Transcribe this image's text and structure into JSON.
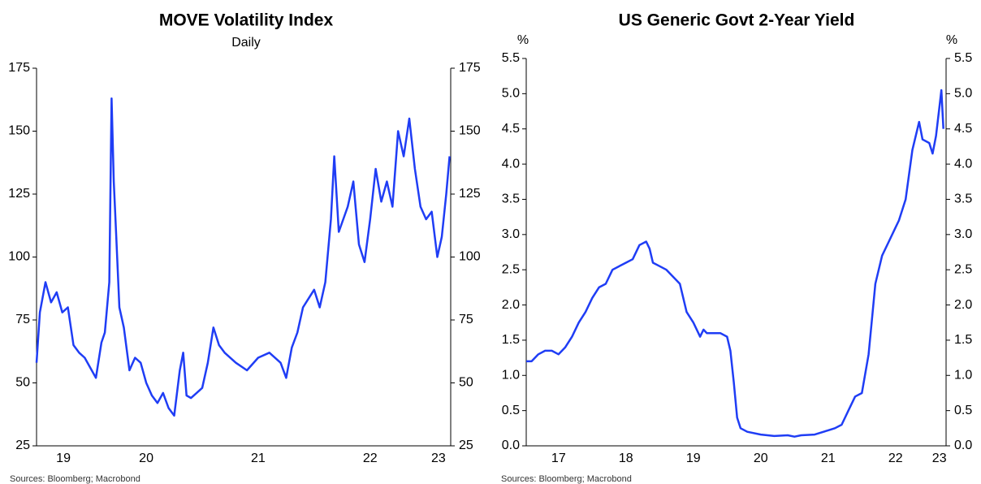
{
  "chart_data": [
    {
      "type": "line",
      "title": "MOVE Volatility Index",
      "subtitle": "Daily",
      "source": "Sources: Bloomberg; Macrobond",
      "color": "#1f3df5",
      "x": [
        2019.52,
        2019.55,
        2019.6,
        2019.65,
        2019.7,
        2019.75,
        2019.8,
        2019.85,
        2019.9,
        2019.95,
        2020.0,
        2020.05,
        2020.1,
        2020.13,
        2020.17,
        2020.19,
        2020.21,
        2020.23,
        2020.26,
        2020.3,
        2020.35,
        2020.4,
        2020.45,
        2020.5,
        2020.55,
        2020.6,
        2020.65,
        2020.7,
        2020.75,
        2020.8,
        2020.83,
        2020.86,
        2020.9,
        2020.95,
        2021.0,
        2021.05,
        2021.1,
        2021.15,
        2021.2,
        2021.3,
        2021.4,
        2021.5,
        2021.6,
        2021.7,
        2021.75,
        2021.8,
        2021.85,
        2021.9,
        2022.0,
        2022.05,
        2022.1,
        2022.15,
        2022.18,
        2022.22,
        2022.3,
        2022.35,
        2022.4,
        2022.45,
        2022.5,
        2022.55,
        2022.6,
        2022.65,
        2022.7,
        2022.75,
        2022.8,
        2022.85,
        2022.9,
        2022.95,
        2023.0,
        2023.05,
        2023.1,
        2023.14,
        2023.18,
        2023.21
      ],
      "values": [
        58,
        78,
        90,
        82,
        86,
        78,
        80,
        65,
        62,
        60,
        56,
        52,
        66,
        70,
        90,
        163,
        130,
        110,
        80,
        72,
        55,
        60,
        58,
        50,
        45,
        42,
        46,
        40,
        37,
        55,
        62,
        45,
        44,
        46,
        48,
        58,
        72,
        65,
        62,
        58,
        55,
        60,
        62,
        58,
        52,
        64,
        70,
        80,
        87,
        80,
        90,
        115,
        140,
        110,
        120,
        130,
        105,
        98,
        115,
        135,
        122,
        130,
        120,
        150,
        140,
        155,
        135,
        120,
        115,
        118,
        100,
        108,
        125,
        140
      ],
      "xlim": [
        2019.52,
        2023.22
      ],
      "xticks": [
        {
          "value": 2019.76,
          "label": "19"
        },
        {
          "value": 2020.5,
          "label": "20"
        },
        {
          "value": 2021.5,
          "label": "21"
        },
        {
          "value": 2022.5,
          "label": "22"
        },
        {
          "value": 2023.11,
          "label": "23"
        }
      ],
      "ylim": [
        25,
        175
      ],
      "yticks": [
        25,
        50,
        75,
        100,
        125,
        150,
        175
      ]
    },
    {
      "type": "line",
      "title": "US Generic Govt 2-Year Yield",
      "unit_label": "%",
      "source": "Sources: Bloomberg; Macrobond",
      "color": "#1f3df5",
      "x": [
        2017.02,
        2017.1,
        2017.2,
        2017.3,
        2017.4,
        2017.5,
        2017.6,
        2017.7,
        2017.8,
        2017.9,
        2018.0,
        2018.1,
        2018.2,
        2018.3,
        2018.4,
        2018.5,
        2018.6,
        2018.7,
        2018.8,
        2018.85,
        2018.9,
        2019.0,
        2019.1,
        2019.2,
        2019.3,
        2019.4,
        2019.5,
        2019.6,
        2019.65,
        2019.7,
        2019.8,
        2019.9,
        2020.0,
        2020.05,
        2020.1,
        2020.15,
        2020.2,
        2020.3,
        2020.5,
        2020.7,
        2020.9,
        2021.0,
        2021.1,
        2021.3,
        2021.5,
        2021.6,
        2021.7,
        2021.8,
        2021.9,
        2022.0,
        2022.1,
        2022.2,
        2022.3,
        2022.4,
        2022.5,
        2022.55,
        2022.65,
        2022.75,
        2022.85,
        2022.9,
        2023.0,
        2023.05,
        2023.1,
        2023.15,
        2023.18,
        2023.21
      ],
      "values": [
        1.2,
        1.2,
        1.3,
        1.35,
        1.35,
        1.3,
        1.4,
        1.55,
        1.75,
        1.9,
        2.1,
        2.25,
        2.3,
        2.5,
        2.55,
        2.6,
        2.65,
        2.85,
        2.9,
        2.8,
        2.6,
        2.55,
        2.5,
        2.4,
        2.3,
        1.9,
        1.75,
        1.55,
        1.65,
        1.6,
        1.6,
        1.6,
        1.55,
        1.35,
        0.9,
        0.4,
        0.25,
        0.2,
        0.16,
        0.14,
        0.15,
        0.13,
        0.15,
        0.16,
        0.22,
        0.25,
        0.3,
        0.5,
        0.7,
        0.75,
        1.3,
        2.3,
        2.7,
        2.9,
        3.1,
        3.2,
        3.5,
        4.2,
        4.6,
        4.35,
        4.3,
        4.15,
        4.4,
        4.8,
        5.05,
        4.5
      ],
      "xlim": [
        2017.02,
        2023.25
      ],
      "xticks": [
        {
          "value": 2017.5,
          "label": "17"
        },
        {
          "value": 2018.5,
          "label": "18"
        },
        {
          "value": 2019.5,
          "label": "19"
        },
        {
          "value": 2020.5,
          "label": "20"
        },
        {
          "value": 2021.5,
          "label": "21"
        },
        {
          "value": 2022.5,
          "label": "22"
        },
        {
          "value": 2023.15,
          "label": "23"
        }
      ],
      "ylim": [
        0,
        5.5
      ],
      "yticks": [
        {
          "value": 0,
          "label": "0.0"
        },
        0.5,
        {
          "value": 1,
          "label": "1.0"
        },
        1.5,
        {
          "value": 2,
          "label": "2.0"
        },
        2.5,
        {
          "value": 3,
          "label": "3.0"
        },
        3.5,
        {
          "value": 4,
          "label": "4.0"
        },
        4.5,
        {
          "value": 5,
          "label": "5.0"
        },
        5.5
      ]
    }
  ]
}
